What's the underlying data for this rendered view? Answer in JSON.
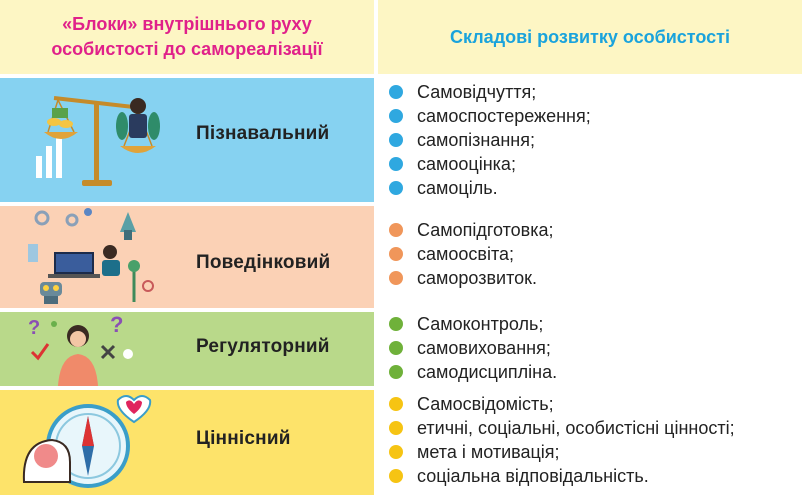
{
  "header": {
    "left_title": "«Блоки» внутрішнього руху особистості до самореалізації",
    "right_title": "Складові розвитку особистості"
  },
  "rows": [
    {
      "label": "Пізнавальний",
      "color": "#86d2f1",
      "dot": "#2fa8e0",
      "illustration": "scales-icon",
      "items": [
        "Самовідчуття;",
        "самоспостереження;",
        "самопізнання;",
        "самооцінка;",
        "самоціль."
      ]
    },
    {
      "label": "Поведінковий",
      "color": "#fbd1b5",
      "dot": "#f0965a",
      "illustration": "robot-workspace-icon",
      "items": [
        "Самопідготовка;",
        "самоосвіта;",
        "саморозвиток."
      ]
    },
    {
      "label": "Регуляторний",
      "color": "#b9d98a",
      "dot": "#6fb13a",
      "illustration": "thinking-person-icon",
      "items": [
        "Самоконтроль;",
        "самовиховання;",
        "самодисципліна."
      ]
    },
    {
      "label": "Ціннісний",
      "color": "#fde36a",
      "dot": "#f6c413",
      "illustration": "brain-compass-icon",
      "items": [
        "Самосвідомість;",
        "етичні, соціальні, особистісні цінності;",
        "мета і мотивація;",
        "соціальна відповідальність."
      ]
    }
  ]
}
